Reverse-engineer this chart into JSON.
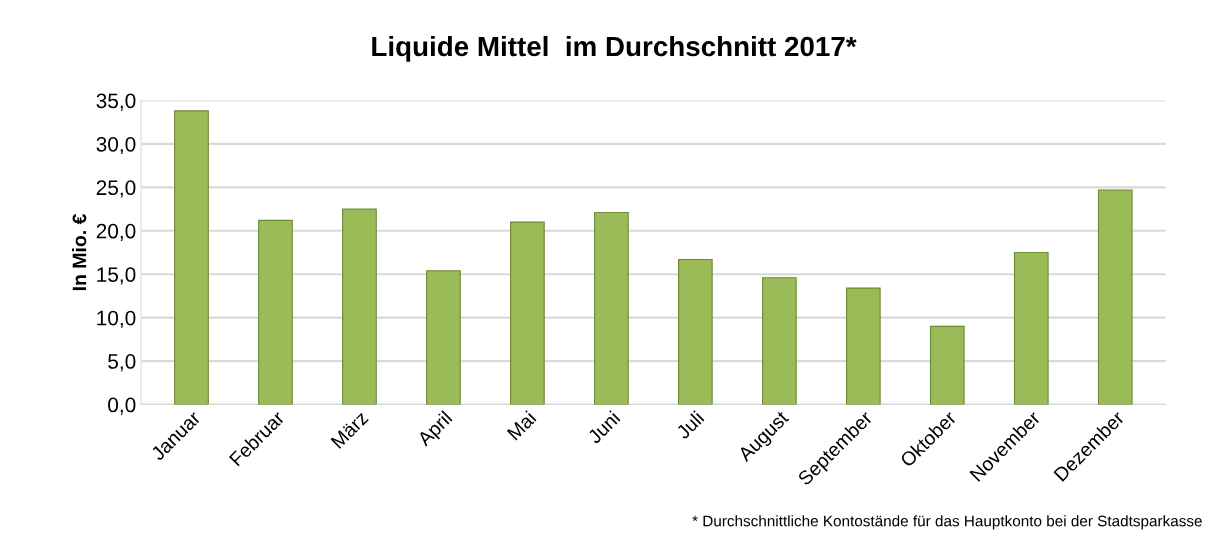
{
  "chart_data": {
    "type": "bar",
    "title": "Liquide Mittel  im Durchschnitt 2017*",
    "ylabel": "In Mio. €",
    "categories": [
      "Januar",
      "Februar",
      "März",
      "April",
      "Mai",
      "Juni",
      "Juli",
      "August",
      "September",
      "Oktober",
      "November",
      "Dezember"
    ],
    "values": [
      33.8,
      21.2,
      22.5,
      15.4,
      21.0,
      22.1,
      16.7,
      14.6,
      13.4,
      9.0,
      17.5,
      24.7
    ],
    "color": "#9bbb59",
    "ylim": [
      0,
      35
    ],
    "yticks": [
      {
        "value": 0,
        "label": "0,0"
      },
      {
        "value": 5,
        "label": "5,0"
      },
      {
        "value": 10,
        "label": "10,0"
      },
      {
        "value": 15,
        "label": "15,0"
      },
      {
        "value": 20,
        "label": "20,0"
      },
      {
        "value": 25,
        "label": "25,0"
      },
      {
        "value": 30,
        "label": "30,0"
      },
      {
        "value": 35,
        "label": "35,0"
      }
    ],
    "grid": "y",
    "annotations": [
      "* Durchschnittliche Kontostände für das Hauptkonto bei der Stadtsparkasse"
    ]
  }
}
